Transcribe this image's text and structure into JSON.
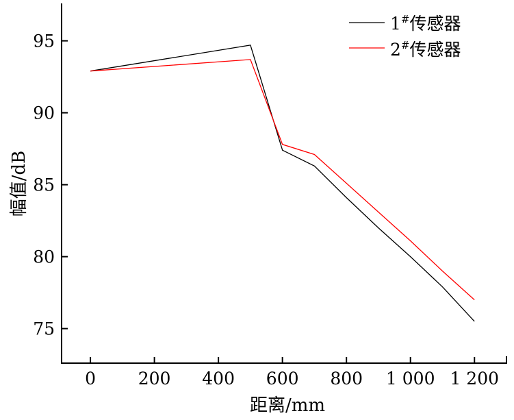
{
  "chart_data": {
    "type": "line",
    "title": "",
    "xlabel": "距离/mm",
    "ylabel": "幅值/dB",
    "xlim": [
      -90,
      1300
    ],
    "ylim": [
      72.6,
      97.6
    ],
    "xticks": [
      0,
      200,
      400,
      600,
      800,
      1000,
      1200
    ],
    "xtick_labels": [
      "0",
      "200",
      "400",
      "600",
      "800",
      "1 000",
      "1 200"
    ],
    "yticks": [
      75,
      80,
      85,
      90,
      95
    ],
    "ytick_labels": [
      "75",
      "80",
      "85",
      "90",
      "95"
    ],
    "grid": false,
    "legend_position": "top-right",
    "x": [
      0,
      500,
      600,
      700,
      800,
      900,
      1000,
      1100,
      1200
    ],
    "series": [
      {
        "name": "1#传感器",
        "label_main": "1",
        "label_sup": "#",
        "label_rest": "传感器",
        "color": "#000000",
        "values": [
          92.9,
          94.7,
          87.4,
          86.3,
          84.1,
          82.0,
          80.0,
          77.9,
          75.5
        ]
      },
      {
        "name": "2#传感器",
        "label_main": "2",
        "label_sup": "#",
        "label_rest": "传感器",
        "color": "#ff0000",
        "values": [
          92.9,
          93.7,
          87.8,
          87.1,
          85.1,
          83.1,
          81.1,
          79.0,
          77.0
        ]
      }
    ]
  }
}
